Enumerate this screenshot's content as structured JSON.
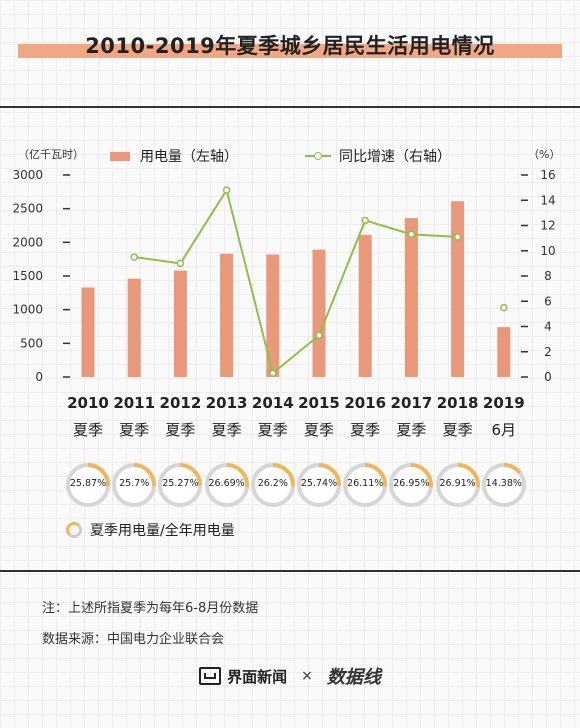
{
  "title": "2010-2019年夏季城乡居民生活用电情况",
  "legend": {
    "bar_label": "用电量（左轴",
    "bar_paren": "）",
    "line_label": "同比增速（右轴",
    "line_paren": "）",
    "share_label": "夏季用电量/全年用电量"
  },
  "units": {
    "left": "（亿千瓦时）",
    "right": "（%）"
  },
  "colors": {
    "bar": "#e9987a",
    "line": "#8fbf4a",
    "ring": "#f2b65a",
    "ring_track": "#d6d6d6"
  },
  "chart_data": {
    "type": "bar",
    "categories": [
      "2010 夏季",
      "2011 夏季",
      "2012 夏季",
      "2013 夏季",
      "2014 夏季",
      "2015 夏季",
      "2016 夏季",
      "2017 夏季",
      "2018 夏季",
      "2019 6月"
    ],
    "category_years": [
      "2010",
      "2011",
      "2012",
      "2013",
      "2014",
      "2015",
      "2016",
      "2017",
      "2018",
      "2019"
    ],
    "category_sub": [
      "夏季",
      "夏季",
      "夏季",
      "夏季",
      "夏季",
      "夏季",
      "夏季",
      "夏季",
      "夏季",
      "6月"
    ],
    "series": [
      {
        "name": "用电量（左轴）",
        "type": "bar",
        "axis": "left",
        "values": [
          1330,
          1460,
          1580,
          1830,
          1820,
          1890,
          2110,
          2360,
          2610,
          740
        ]
      },
      {
        "name": "同比增速（右轴）",
        "type": "line",
        "axis": "right",
        "values": [
          null,
          9.5,
          9.0,
          14.8,
          0.3,
          3.3,
          12.4,
          11.3,
          11.1,
          5.5
        ]
      }
    ],
    "share_series": {
      "name": "夏季用电量/全年用电量",
      "labels": [
        "25.87%",
        "25.7%",
        "25.27%",
        "26.69%",
        "26.2%",
        "25.74%",
        "26.11%",
        "26.95%",
        "26.91%",
        "14.38%"
      ],
      "values": [
        25.87,
        25.7,
        25.27,
        26.69,
        26.2,
        25.74,
        26.11,
        26.95,
        26.91,
        14.38
      ]
    },
    "y_left": {
      "ticks": [
        0,
        500,
        1000,
        1500,
        2000,
        2500,
        3000
      ],
      "ylim": [
        0,
        3000
      ]
    },
    "y_right": {
      "ticks": [
        0,
        2,
        4,
        6,
        8,
        10,
        12,
        14,
        16
      ],
      "ylim": [
        0,
        16
      ]
    },
    "grid": false
  },
  "notes": {
    "note": "注：上述所指夏季为每年6-8月份数据",
    "source": "数据来源：中国电力企业联合会"
  },
  "footer": {
    "brand": "界面新闻",
    "times": "×",
    "partner": "数据线"
  }
}
